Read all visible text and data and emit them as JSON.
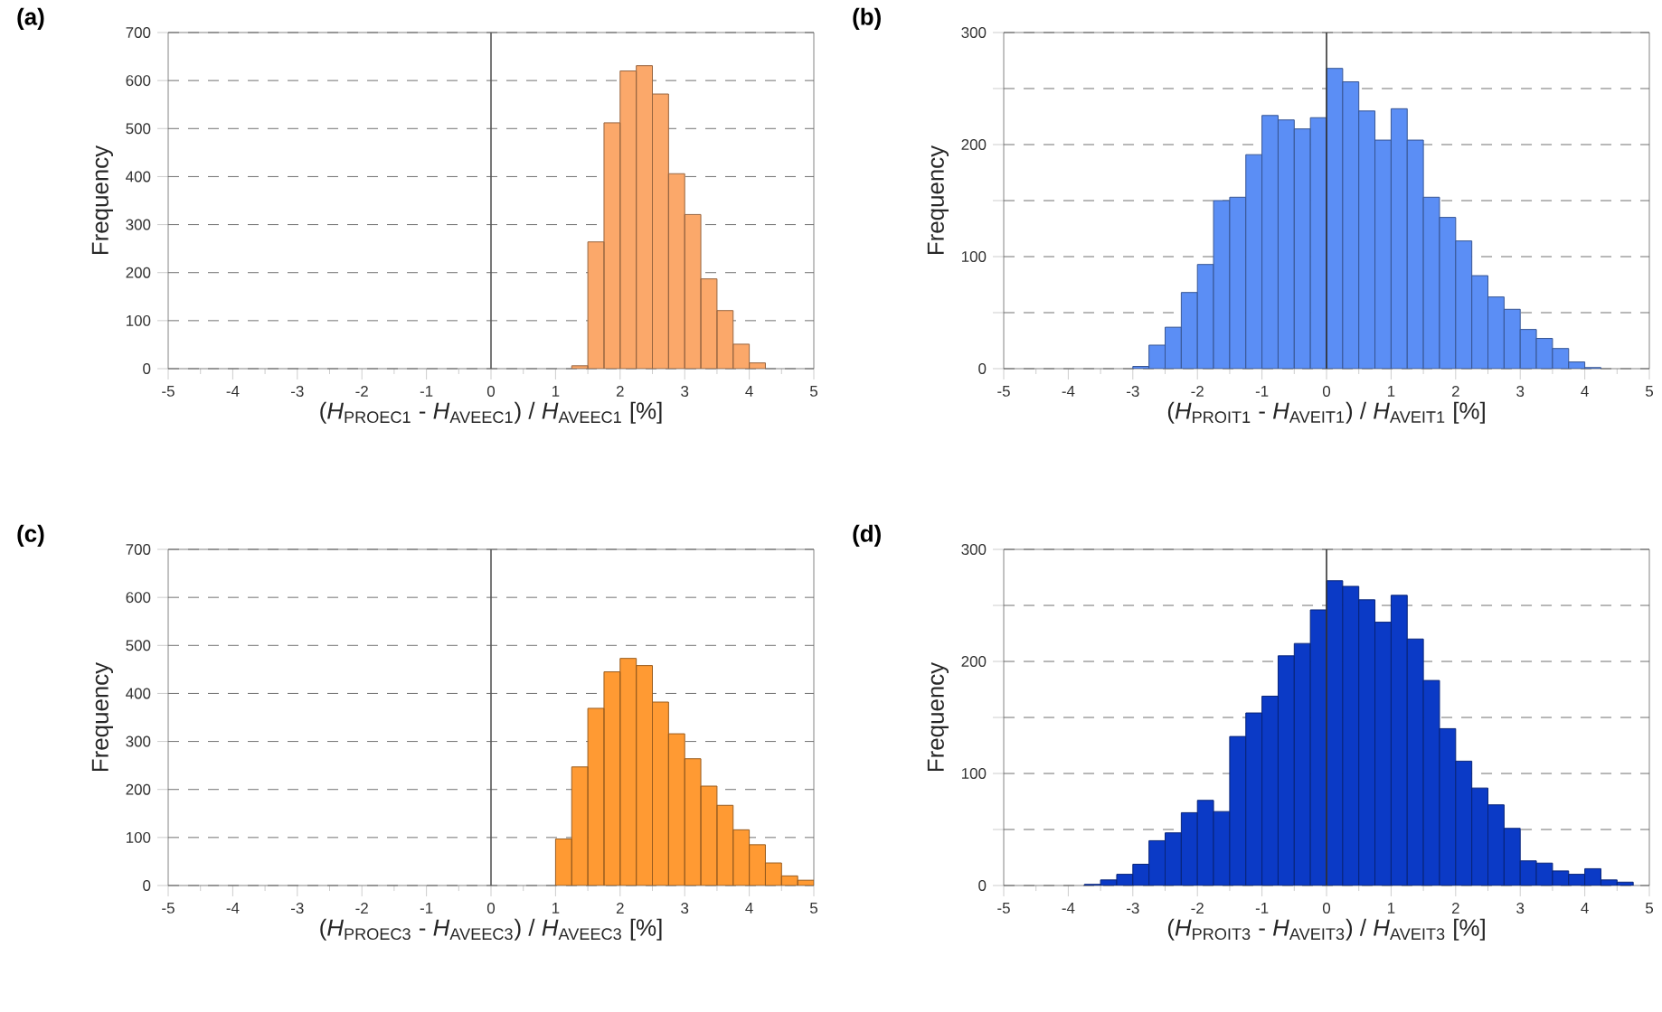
{
  "chart_data": [
    {
      "type": "histogram",
      "title": "(a)",
      "xlabel": "(*H*$_{PROEC1}$ - *H*$_{AVEEC1}$) / *H*$_{AVEEC1}$ [%]",
      "ylabel": "Frequency",
      "color": "#fba86a",
      "bins": [
        1.25,
        1.5,
        1.75,
        2.0,
        2.25,
        2.5,
        2.75,
        3.0,
        3.25,
        3.5,
        3.75,
        4.0,
        4.25
      ],
      "values": [
        6,
        264,
        512,
        620,
        631,
        572,
        406,
        321,
        187,
        121,
        51,
        12
      ],
      "xlim": [
        -5,
        5
      ],
      "ylim": [
        0,
        700
      ],
      "xticks": [
        -5,
        -4,
        -3,
        -2,
        -1,
        0,
        1,
        2,
        3,
        4,
        5
      ],
      "yticks": [
        0,
        100,
        200,
        300,
        400,
        500,
        600,
        700
      ],
      "grid": "y",
      "ref_lines": [
        {
          "axis": "x",
          "value": 0,
          "color": "#555555"
        }
      ]
    },
    {
      "type": "histogram",
      "title": "(b)",
      "xlabel": "(*H*$_{PROIT1}$ - *H*$_{AVEIT1}$) / *H*$_{AVEIT1}$ [%]",
      "ylabel": "Frequency",
      "color": "#5b8ef5",
      "bins": [
        -3.0,
        -2.75,
        -2.5,
        -2.25,
        -2.0,
        -1.75,
        -1.5,
        -1.25,
        -1.0,
        -0.75,
        -0.5,
        -0.25,
        0.0,
        0.25,
        0.5,
        0.75,
        1.0,
        1.25,
        1.5,
        1.75,
        2.0,
        2.25,
        2.5,
        2.75,
        3.0,
        3.25,
        3.5,
        3.75,
        4.0,
        4.25
      ],
      "values": [
        2,
        21,
        37,
        68,
        93,
        150,
        153,
        191,
        226,
        222,
        214,
        224,
        268,
        256,
        230,
        204,
        232,
        204,
        153,
        135,
        114,
        83,
        64,
        53,
        35,
        27,
        18,
        6,
        1
      ],
      "xlim": [
        -5,
        5
      ],
      "ylim": [
        0,
        300
      ],
      "xticks": [
        -5,
        -4,
        -3,
        -2,
        -1,
        0,
        1,
        2,
        3,
        4,
        5
      ],
      "yticks": [
        0,
        {
          "value": 50,
          "label": null
        },
        100,
        {
          "value": 150,
          "label": null
        },
        200,
        {
          "value": 250,
          "label": null
        },
        300
      ],
      "grid": "y",
      "ref_lines": [
        {
          "axis": "x",
          "value": 0,
          "color": "#333333"
        }
      ]
    },
    {
      "type": "histogram",
      "title": "(c)",
      "xlabel": "(*H*$_{PROEC3}$ - *H*$_{AVEEC3}$) / *H*$_{AVEEC3}$ [%]",
      "ylabel": "Frequency",
      "color": "#ff9a33",
      "bins": [
        1.0,
        1.25,
        1.5,
        1.75,
        2.0,
        2.25,
        2.5,
        2.75,
        3.0,
        3.25,
        3.5,
        3.75,
        4.0,
        4.25,
        4.5,
        4.75,
        5.0
      ],
      "values": [
        97,
        247,
        369,
        445,
        473,
        458,
        382,
        316,
        264,
        207,
        167,
        116,
        85,
        47,
        20,
        11
      ],
      "xlim": [
        -5,
        5
      ],
      "ylim": [
        0,
        700
      ],
      "xticks": [
        -5,
        -4,
        -3,
        -2,
        -1,
        0,
        1,
        2,
        3,
        4,
        5
      ],
      "yticks": [
        0,
        100,
        200,
        300,
        400,
        500,
        600,
        700
      ],
      "grid": "y",
      "ref_lines": [
        {
          "axis": "x",
          "value": 0,
          "color": "#555555"
        }
      ]
    },
    {
      "type": "histogram",
      "title": "(d)",
      "xlabel": "(*H*$_{PROIT3}$ - *H*$_{AVEIT3}$) / *H*$_{AVEIT3}$ [%]",
      "ylabel": "Frequency",
      "color": "#0b3ac6",
      "bins": [
        -3.75,
        -3.5,
        -3.25,
        -3.0,
        -2.75,
        -2.5,
        -2.25,
        -2.0,
        -1.75,
        -1.5,
        -1.25,
        -1.0,
        -0.75,
        -0.5,
        -0.25,
        0.0,
        0.25,
        0.5,
        0.75,
        1.0,
        1.25,
        1.5,
        1.75,
        2.0,
        2.25,
        2.5,
        2.75,
        3.0,
        3.25,
        3.5,
        3.75,
        4.0,
        4.25,
        4.5,
        4.75
      ],
      "values": [
        1,
        5,
        10,
        19,
        40,
        47,
        65,
        76,
        66,
        133,
        154,
        169,
        205,
        216,
        246,
        272,
        267,
        255,
        235,
        259,
        220,
        183,
        140,
        111,
        87,
        72,
        51,
        22,
        20,
        13,
        10,
        15,
        5,
        3
      ],
      "xlim": [
        -5,
        5
      ],
      "ylim": [
        0,
        300
      ],
      "xticks": [
        -5,
        -4,
        -3,
        -2,
        -1,
        0,
        1,
        2,
        3,
        4,
        5
      ],
      "yticks": [
        0,
        {
          "value": 50,
          "label": null
        },
        100,
        {
          "value": 150,
          "label": null
        },
        200,
        {
          "value": 250,
          "label": null
        },
        300
      ],
      "grid": "y",
      "ref_lines": [
        {
          "axis": "x",
          "value": 0,
          "color": "#333333"
        }
      ]
    }
  ]
}
